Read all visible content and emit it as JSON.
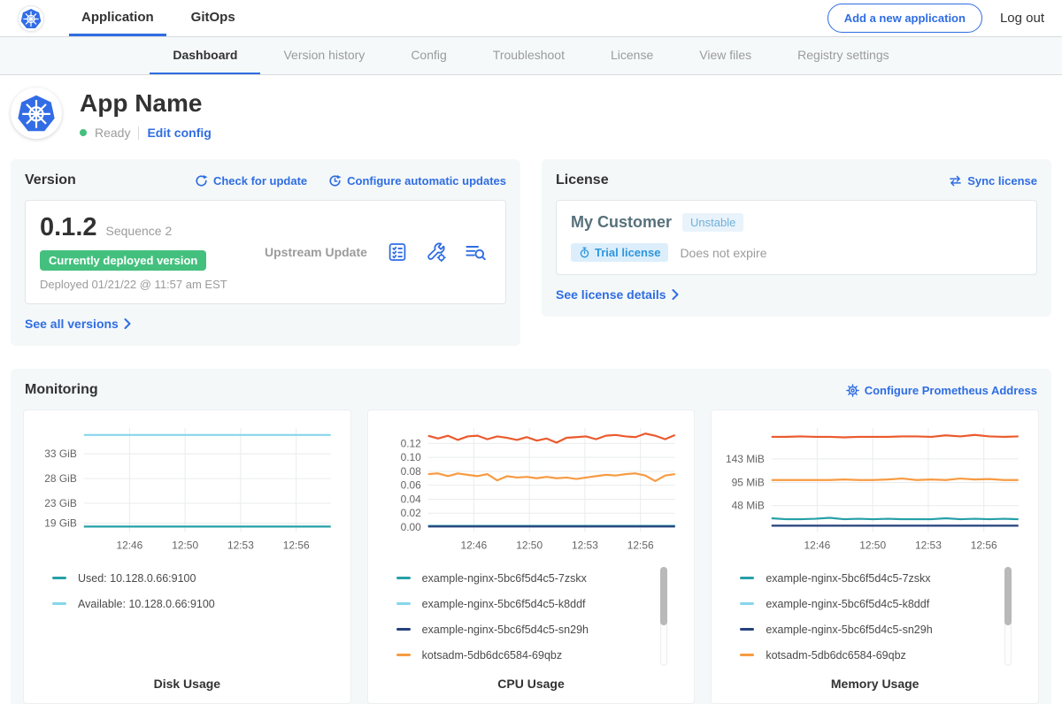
{
  "topnav": {
    "tabs": [
      {
        "label": "Application"
      },
      {
        "label": "GitOps"
      }
    ],
    "add_app_button": "Add a new application",
    "logout": "Log out"
  },
  "subnav": {
    "tabs": [
      {
        "label": "Dashboard"
      },
      {
        "label": "Version history"
      },
      {
        "label": "Config"
      },
      {
        "label": "Troubleshoot"
      },
      {
        "label": "License"
      },
      {
        "label": "View files"
      },
      {
        "label": "Registry settings"
      }
    ]
  },
  "app_header": {
    "title": "App Name",
    "status": "Ready",
    "edit_config": "Edit config"
  },
  "version_card": {
    "title": "Version",
    "check_for_update": "Check for update",
    "configure_updates": "Configure automatic updates",
    "version": "0.1.2",
    "sequence": "Sequence 2",
    "deployed_badge": "Currently deployed version",
    "deployed_at": "Deployed 01/21/22 @ 11:57 am EST",
    "source": "Upstream Update",
    "see_all": "See all versions"
  },
  "license_card": {
    "title": "License",
    "sync": "Sync license",
    "customer": "My Customer",
    "channel": "Unstable",
    "type_badge": "Trial license",
    "expiry": "Does not expire",
    "details": "See license details"
  },
  "monitoring": {
    "title": "Monitoring",
    "configure": "Configure Prometheus Address"
  },
  "colors": {
    "accent_blue": "#2f6de2",
    "kubernetes_blue": "#326de6",
    "status_green": "#44c07e",
    "series_teal": "#26a0a8",
    "series_light_blue": "#87d6ec",
    "series_navy": "#25417d",
    "series_orange": "#f79b42",
    "series_red_orange": "#eb5a2d"
  },
  "chart_data": [
    {
      "type": "line",
      "title": "Disk Usage",
      "ylim": [
        17.2,
        38.2
      ],
      "y_ticks": [
        {
          "label": "19 GiB",
          "value": 19
        },
        {
          "label": "23 GiB",
          "value": 23
        },
        {
          "label": "28 GiB",
          "value": 28
        },
        {
          "label": "33 GiB",
          "value": 33
        }
      ],
      "x_ticks": [
        {
          "label": "12:46",
          "pos": 0.185
        },
        {
          "label": "12:50",
          "pos": 0.41
        },
        {
          "label": "12:53",
          "pos": 0.635
        },
        {
          "label": "12:56",
          "pos": 0.86
        }
      ],
      "series": [
        {
          "name": "Available: 10.128.0.66:9100",
          "color": "#87d6ec",
          "values": [
            36.8,
            36.8
          ]
        },
        {
          "name": "Used: 10.128.0.66:9100",
          "color": "#26a0a8",
          "values": [
            18.3,
            18.3
          ]
        }
      ],
      "legend": [
        {
          "label": "Used: 10.128.0.66:9100",
          "color": "#26a0a8"
        },
        {
          "label": "Available: 10.128.0.66:9100",
          "color": "#87d6ec"
        }
      ],
      "legend_scrollbar": false
    },
    {
      "type": "line",
      "title": "CPU Usage",
      "ylim": [
        -0.007,
        0.142
      ],
      "y_ticks": [
        {
          "label": "0.00",
          "value": 0.0
        },
        {
          "label": "0.02",
          "value": 0.02
        },
        {
          "label": "0.04",
          "value": 0.04
        },
        {
          "label": "0.06",
          "value": 0.06
        },
        {
          "label": "0.08",
          "value": 0.08
        },
        {
          "label": "0.10",
          "value": 0.1
        },
        {
          "label": "0.12",
          "value": 0.12
        }
      ],
      "x_ticks": [
        {
          "label": "12:46",
          "pos": 0.185
        },
        {
          "label": "12:50",
          "pos": 0.41
        },
        {
          "label": "12:53",
          "pos": 0.635
        },
        {
          "label": "12:56",
          "pos": 0.86
        }
      ],
      "series": [
        {
          "name": "",
          "color": "#eb5a2d",
          "values": [
            0.131,
            0.127,
            0.131,
            0.125,
            0.13,
            0.131,
            0.126,
            0.13,
            0.128,
            0.125,
            0.129,
            0.124,
            0.127,
            0.121,
            0.128,
            0.129,
            0.13,
            0.126,
            0.131,
            0.132,
            0.13,
            0.129,
            0.134,
            0.131,
            0.126,
            0.132
          ]
        },
        {
          "name": "kotsadm-5db6dc6584-69qbz",
          "color": "#f79b42",
          "values": [
            0.076,
            0.077,
            0.073,
            0.077,
            0.075,
            0.073,
            0.076,
            0.067,
            0.073,
            0.071,
            0.072,
            0.07,
            0.072,
            0.07,
            0.071,
            0.069,
            0.071,
            0.073,
            0.075,
            0.074,
            0.076,
            0.077,
            0.074,
            0.066,
            0.074,
            0.076
          ]
        },
        {
          "name": "example-nginx-5bc6f5d4c5-7zskx",
          "color": "#26a0a8",
          "values": [
            0.002,
            0.002
          ]
        },
        {
          "name": "example-nginx-5bc6f5d4c5-k8ddf",
          "color": "#87d6ec",
          "values": [
            0.0015,
            0.0015
          ]
        },
        {
          "name": "example-nginx-5bc6f5d4c5-sn29h",
          "color": "#25417d",
          "values": [
            0.001,
            0.001
          ]
        }
      ],
      "legend": [
        {
          "label": "example-nginx-5bc6f5d4c5-7zskx",
          "color": "#26a0a8"
        },
        {
          "label": "example-nginx-5bc6f5d4c5-k8ddf",
          "color": "#87d6ec"
        },
        {
          "label": "example-nginx-5bc6f5d4c5-sn29h",
          "color": "#25417d"
        },
        {
          "label": "kotsadm-5db6dc6584-69qbz",
          "color": "#f79b42"
        }
      ],
      "legend_scrollbar": true
    },
    {
      "type": "line",
      "title": "Memory Usage",
      "ylim": [
        -6,
        206
      ],
      "y_ticks": [
        {
          "label": "48 MiB",
          "value": 48
        },
        {
          "label": "95 MiB",
          "value": 95
        },
        {
          "label": "143 MiB",
          "value": 143
        }
      ],
      "x_ticks": [
        {
          "label": "12:46",
          "pos": 0.185
        },
        {
          "label": "12:50",
          "pos": 0.41
        },
        {
          "label": "12:53",
          "pos": 0.635
        },
        {
          "label": "12:56",
          "pos": 0.86
        }
      ],
      "series": [
        {
          "name": "",
          "color": "#eb5a2d",
          "values": [
            188,
            188,
            189,
            188,
            188,
            187,
            188,
            188,
            188,
            189,
            189,
            188,
            191,
            189,
            192,
            189,
            188,
            189
          ]
        },
        {
          "name": "kotsadm-5db6dc6584-69qbz",
          "color": "#f79b42",
          "values": [
            100,
            100,
            100,
            100,
            100,
            101,
            100,
            100,
            101,
            103,
            100,
            101,
            100,
            103,
            101,
            102,
            100,
            100
          ]
        },
        {
          "name": "example-nginx-5bc6f5d4c5-7zskx",
          "color": "#26a0a8",
          "values": [
            22,
            20,
            20,
            21,
            23,
            20,
            21,
            20,
            21,
            20,
            20,
            20,
            22,
            20,
            21,
            20,
            21,
            20
          ]
        },
        {
          "name": "example-nginx-5bc6f5d4c5-sn29h",
          "color": "#25417d",
          "values": [
            7,
            7
          ]
        }
      ],
      "legend": [
        {
          "label": "example-nginx-5bc6f5d4c5-7zskx",
          "color": "#26a0a8"
        },
        {
          "label": "example-nginx-5bc6f5d4c5-k8ddf",
          "color": "#87d6ec"
        },
        {
          "label": "example-nginx-5bc6f5d4c5-sn29h",
          "color": "#25417d"
        },
        {
          "label": "kotsadm-5db6dc6584-69qbz",
          "color": "#f79b42"
        }
      ],
      "legend_scrollbar": true
    }
  ]
}
